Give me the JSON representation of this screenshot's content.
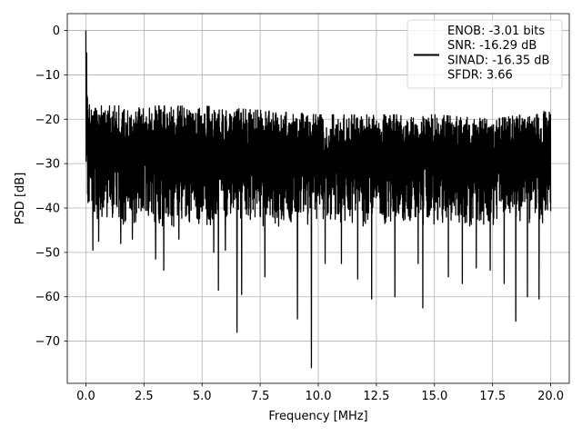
{
  "chart_data": {
    "type": "line",
    "xlabel": "Frequency [MHz]",
    "ylabel": "PSD [dB]",
    "xlim": [
      -0.8,
      20.8
    ],
    "ylim": [
      -79.5,
      3.8
    ],
    "x_ticks": [
      0.0,
      2.5,
      5.0,
      7.5,
      10.0,
      12.5,
      15.0,
      17.5,
      20.0
    ],
    "x_tick_labels": [
      "0.0",
      "2.5",
      "5.0",
      "7.5",
      "10.0",
      "12.5",
      "15.0",
      "17.5",
      "20.0"
    ],
    "y_ticks": [
      0,
      -10,
      -20,
      -30,
      -40,
      -50,
      -60,
      -70
    ],
    "y_tick_labels": [
      "0",
      "−10",
      "−20",
      "−30",
      "−40",
      "−50",
      "−60",
      "−70"
    ],
    "grid": true,
    "legend_position": "top-right",
    "series": [
      {
        "color": "#000000",
        "x_range": [
          0.0,
          20.0
        ],
        "envelope_x": [
          0.0,
          0.1,
          0.5,
          2.0,
          5.0,
          7.5,
          10.0,
          12.5,
          15.0,
          17.5,
          20.0
        ],
        "envelope_upper": [
          0.0,
          -13,
          -17,
          -17,
          -17,
          -18,
          -19,
          -19,
          -19,
          -20,
          -18
        ],
        "envelope_lower": [
          -45,
          -40,
          -42,
          -43,
          -43,
          -43,
          -43,
          -43,
          -43,
          -43,
          -42
        ],
        "notable_dips": [
          {
            "x": 0.3,
            "y": -49.5
          },
          {
            "x": 0.55,
            "y": -47.5
          },
          {
            "x": 1.5,
            "y": -48
          },
          {
            "x": 2.0,
            "y": -47
          },
          {
            "x": 3.0,
            "y": -51.5
          },
          {
            "x": 3.35,
            "y": -54
          },
          {
            "x": 4.0,
            "y": -47
          },
          {
            "x": 5.5,
            "y": -50
          },
          {
            "x": 5.7,
            "y": -58.5
          },
          {
            "x": 6.0,
            "y": -49.5
          },
          {
            "x": 6.5,
            "y": -68
          },
          {
            "x": 6.7,
            "y": -59.5
          },
          {
            "x": 7.7,
            "y": -55.5
          },
          {
            "x": 9.1,
            "y": -65
          },
          {
            "x": 9.7,
            "y": -76
          },
          {
            "x": 10.3,
            "y": -52.5
          },
          {
            "x": 11.0,
            "y": -52.5
          },
          {
            "x": 11.7,
            "y": -56
          },
          {
            "x": 12.3,
            "y": -60.5
          },
          {
            "x": 13.3,
            "y": -60
          },
          {
            "x": 14.3,
            "y": -52.5
          },
          {
            "x": 14.5,
            "y": -62.5
          },
          {
            "x": 15.6,
            "y": -55.5
          },
          {
            "x": 16.2,
            "y": -57
          },
          {
            "x": 16.8,
            "y": -53.5
          },
          {
            "x": 17.4,
            "y": -54
          },
          {
            "x": 18.0,
            "y": -57
          },
          {
            "x": 18.5,
            "y": -65.5
          },
          {
            "x": 19.0,
            "y": -60
          },
          {
            "x": 19.5,
            "y": -60.5
          }
        ]
      }
    ],
    "legend_lines": [
      "ENOB: -3.01 bits",
      "SNR: -16.29 dB",
      "SINAD: -16.35 dB",
      "SFDR: 3.66"
    ]
  }
}
